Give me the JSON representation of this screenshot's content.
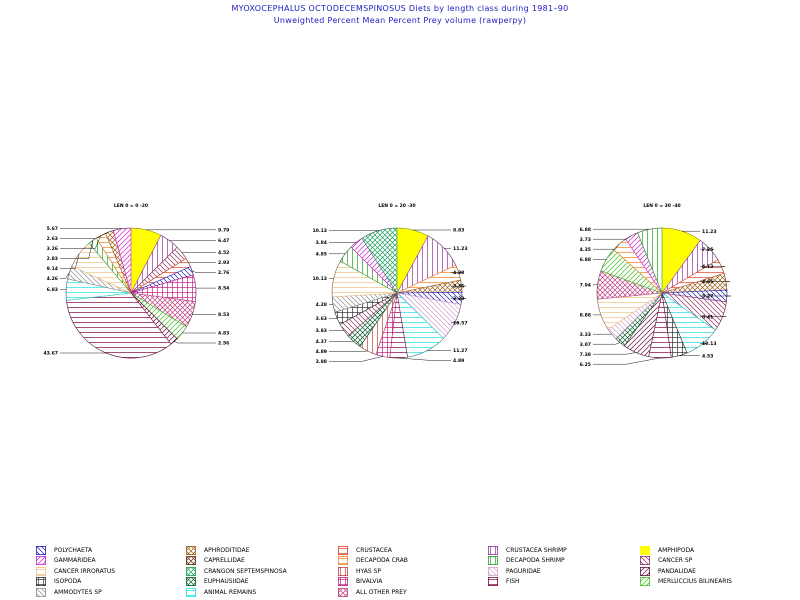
{
  "title": "MYOXOCEPHALUS OCTODECEMSPINOSUS Diets by length class during 1981–90",
  "subtitle": "Unweighted Percent Mean Percent Prey  volume (rawperpy)",
  "colors": {
    "title": "#2020c0",
    "POLYCHAETA": "#2020c0",
    "APHRODITIDAE": "#a06020",
    "CRUSTACEA": "#e04020",
    "CRUSTACEA SHRIMP": "#9030a0",
    "AMPHIPODA": "#ffff00",
    "GAMMARIDEA": "#d020d0",
    "CAPRELLIDAE": "#603010",
    "DECAPODA CRAB": "#f08020",
    "DECAPODA SHRIMP": "#20a020",
    "CANCER SP": "#903060",
    "CANCER IRRORATUS": "#f0c080",
    "CRANGON SEPTEMSPINOSA": "#20a060",
    "HYAS SP": "#c04040",
    "PAGURIDAE": "#d0a0d0",
    "PANDALIDAE": "#601040",
    "ISOPODA": "#303030",
    "EUPHAUSIIDAE": "#106030",
    "BIVALVIA": "#c02080",
    "FISH": "#800040",
    "MERLUCCIUS BILINEARIS": "#40c020",
    "AMMODYTES SP": "#909090",
    "ANIMAL REMAINS": "#20e0e0",
    "ALL OTHER PREY": "#c04080"
  },
  "legend": [
    {
      "label": "POLYCHAETA",
      "pattern": "diag-down"
    },
    {
      "label": "APHRODITIDAE",
      "pattern": "x"
    },
    {
      "label": "CRUSTACEA",
      "pattern": "horiz"
    },
    {
      "label": "CRUSTACEA SHRIMP",
      "pattern": "vert"
    },
    {
      "label": "AMPHIPODA",
      "pattern": "solid"
    },
    {
      "label": "GAMMARIDEA",
      "pattern": "diag-up"
    },
    {
      "label": "CAPRELLIDAE",
      "pattern": "x"
    },
    {
      "label": "DECAPODA CRAB",
      "pattern": "horiz"
    },
    {
      "label": "DECAPODA SHRIMP",
      "pattern": "vert"
    },
    {
      "label": "CANCER SP",
      "pattern": "diag-down"
    },
    {
      "label": "CANCER IRRORATUS",
      "pattern": "horiz"
    },
    {
      "label": "CRANGON SEPTEMSPINOSA",
      "pattern": "x"
    },
    {
      "label": "HYAS SP",
      "pattern": "vert"
    },
    {
      "label": "PAGURIDAE",
      "pattern": "diag-down"
    },
    {
      "label": "PANDALIDAE",
      "pattern": "diag-up"
    },
    {
      "label": "ISOPODA",
      "pattern": "grid"
    },
    {
      "label": "EUPHAUSIIDAE",
      "pattern": "x"
    },
    {
      "label": "BIVALVIA",
      "pattern": "grid"
    },
    {
      "label": "FISH",
      "pattern": "horiz"
    },
    {
      "label": "MERLUCCIUS BILINEARIS",
      "pattern": "diag-up"
    },
    {
      "label": "AMMODYTES SP",
      "pattern": "diag-down"
    },
    {
      "label": "ANIMAL REMAINS",
      "pattern": "horiz"
    },
    {
      "label": "ALL OTHER PREY",
      "pattern": "x"
    }
  ],
  "chart_data": [
    {
      "type": "pie",
      "title": "LEN 0 = 0 -20",
      "slices": [
        {
          "category": "AMPHIPODA",
          "value": 9.79
        },
        {
          "category": "CRUSTACEA SHRIMP",
          "value": 6.47
        },
        {
          "category": "CANCER SP",
          "value": 4.52
        },
        {
          "category": "CRUSTACEA",
          "value": 2.93
        },
        {
          "category": "POLYCHAETA",
          "value": 2.76
        },
        {
          "category": "BIVALVIA",
          "value": 8.54
        },
        {
          "category": "ALL OTHER PREY",
          "value": 8.53
        },
        {
          "category": "MERLUCCIUS BILINEARIS",
          "value": 4.83
        },
        {
          "category": "PANDALIDAE",
          "value": 2.56
        },
        {
          "category": "FISH",
          "value": 43.67
        },
        {
          "category": "ANIMAL REMAINS",
          "value": 6.83
        },
        {
          "category": "AMMODYTES SP",
          "value": 4.26
        },
        {
          "category": "CANCER IRRORATUS",
          "value": 9.14
        },
        {
          "category": "DECAPODA SHRIMP",
          "value": 2.83
        },
        {
          "category": "DECAPODA CRAB",
          "value": 3.26
        },
        {
          "category": "APHRODITIDAE",
          "value": 2.63
        },
        {
          "category": "GAMMARIDEA",
          "value": 5.67
        }
      ]
    },
    {
      "type": "pie",
      "title": "LEN 0 = 20 -30",
      "slices": [
        {
          "category": "AMPHIPODA",
          "value": 8.83
        },
        {
          "category": "CRUSTACEA SHRIMP",
          "value": 11.23
        },
        {
          "category": "DECAPODA CRAB",
          "value": 4.28
        },
        {
          "category": "APHRODITIDAE",
          "value": 3.36
        },
        {
          "category": "POLYCHAETA",
          "value": 3.38
        },
        {
          "category": "PAGURIDAE",
          "value": 10.57
        },
        {
          "category": "ANIMAL REMAINS",
          "value": 11.27
        },
        {
          "category": "FISH",
          "value": 4.89
        },
        {
          "category": "BIVALVIA",
          "value": 3.88
        },
        {
          "category": "HYAS SP",
          "value": 4.89
        },
        {
          "category": "EUPHAUSIIDAE",
          "value": 4.37
        },
        {
          "category": "CANCER SP",
          "value": 3.83
        },
        {
          "category": "ISOPODA",
          "value": 3.63
        },
        {
          "category": "AMMODYTES SP",
          "value": 4.28
        },
        {
          "category": "CANCER IRRORATUS",
          "value": 10.13
        },
        {
          "category": "DECAPODA SHRIMP",
          "value": 4.85
        },
        {
          "category": "GAMMARIDEA",
          "value": 3.84
        },
        {
          "category": "CRANGON SEPTEMSPINOSA",
          "value": 10.13
        }
      ]
    },
    {
      "type": "pie",
      "title": "LEN 0 = 30 -40",
      "slices": [
        {
          "category": "AMPHIPODA",
          "value": 11.23
        },
        {
          "category": "CRUSTACEA SHRIMP",
          "value": 7.25
        },
        {
          "category": "CRUSTACEA",
          "value": 4.13
        },
        {
          "category": "APHRODITIDAE",
          "value": 4.65
        },
        {
          "category": "POLYCHAETA",
          "value": 3.27
        },
        {
          "category": "CANCER SP",
          "value": 8.41
        },
        {
          "category": "ANIMAL REMAINS",
          "value": 10.13
        },
        {
          "category": "ISOPODA",
          "value": 4.53
        },
        {
          "category": "FISH",
          "value": 6.25
        },
        {
          "category": "PANDALIDAE",
          "value": 7.38
        },
        {
          "category": "EUPHAUSIIDAE",
          "value": 3.07
        },
        {
          "category": "PAGURIDAE",
          "value": 3.33
        },
        {
          "category": "CANCER IRRORATUS",
          "value": 8.88
        },
        {
          "category": "ALL OTHER PREY",
          "value": 7.94
        },
        {
          "category": "MERLUCCIUS BILINEARIS",
          "value": 6.88
        },
        {
          "category": "DECAPODA CRAB",
          "value": 4.35
        },
        {
          "category": "GAMMARIDEA",
          "value": 3.73
        },
        {
          "category": "DECAPODA SHRIMP",
          "value": 6.88
        }
      ]
    }
  ]
}
